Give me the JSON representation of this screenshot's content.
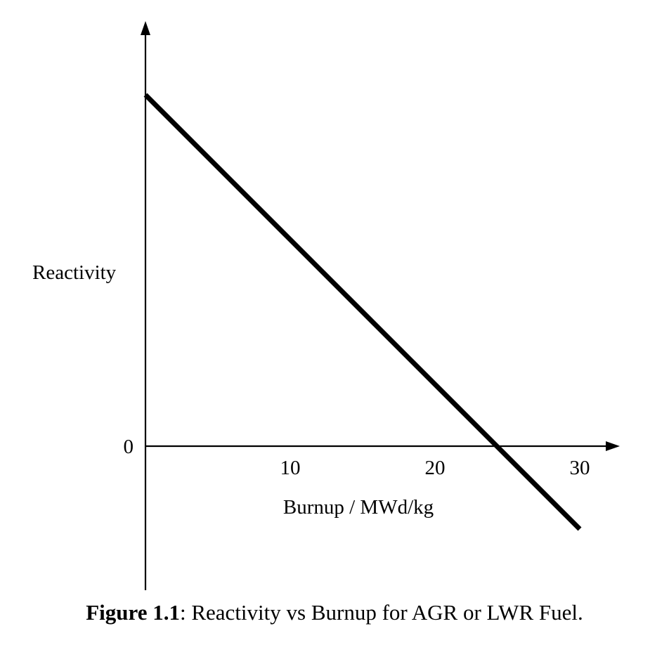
{
  "chart_data": {
    "type": "line",
    "title": "",
    "xlabel": "Burnup / MWd/kg",
    "ylabel": "Reactivity",
    "x_ticks": [
      "10",
      "20",
      "30"
    ],
    "x_tick_values": [
      10,
      20,
      30
    ],
    "y_ticks": [
      "0"
    ],
    "y_tick_values": [
      0
    ],
    "xlim": [
      0,
      32.5
    ],
    "ylim": [
      -1.0,
      2.0
    ],
    "grid": false,
    "legend": "none",
    "series": [
      {
        "name": "Reactivity",
        "x": [
          0,
          30
        ],
        "y": [
          1.0,
          -0.236
        ]
      }
    ],
    "line_color": "#000000"
  },
  "caption": {
    "label": "Figure 1.1",
    "text": ": Reactivity vs Burnup for AGR or LWR Fuel."
  }
}
